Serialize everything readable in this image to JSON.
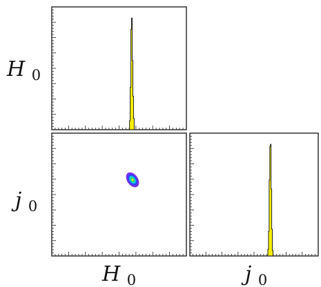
{
  "chart_data": [
    {
      "id": "h0-marginal",
      "type": "histogram",
      "xlabel": "",
      "ylabel": "H0",
      "fill_color": "#f7ef00",
      "bins": [
        {
          "x": 0.575,
          "h": 0.0
        },
        {
          "x": 0.58,
          "h": 0.08
        },
        {
          "x": 0.585,
          "h": 0.38
        },
        {
          "x": 0.59,
          "h": 0.9
        },
        {
          "x": 0.595,
          "h": 1.0
        },
        {
          "x": 0.6,
          "h": 0.62
        },
        {
          "x": 0.605,
          "h": 0.3
        },
        {
          "x": 0.61,
          "h": 0.1
        },
        {
          "x": 0.615,
          "h": 0.0
        }
      ],
      "xlim": [
        0,
        1
      ],
      "ylim": [
        0,
        1.1
      ]
    },
    {
      "id": "j0-marginal",
      "type": "histogram",
      "xlabel": "j0",
      "ylabel": "",
      "fill_color": "#f7ef00",
      "bins": [
        {
          "x": 0.605,
          "h": 0.0
        },
        {
          "x": 0.61,
          "h": 0.06
        },
        {
          "x": 0.615,
          "h": 0.22
        },
        {
          "x": 0.62,
          "h": 0.68
        },
        {
          "x": 0.625,
          "h": 0.98
        },
        {
          "x": 0.63,
          "h": 1.0
        },
        {
          "x": 0.635,
          "h": 0.6
        },
        {
          "x": 0.64,
          "h": 0.24
        },
        {
          "x": 0.645,
          "h": 0.05
        },
        {
          "x": 0.65,
          "h": 0.0
        }
      ],
      "xlim": [
        0,
        1
      ],
      "ylim": [
        0,
        1.1
      ]
    },
    {
      "id": "h0-j0-joint",
      "type": "heatmap",
      "xlabel": "H0",
      "ylabel": "j0",
      "center": [
        0.6,
        0.62
      ],
      "contours": [
        {
          "level": 0.1,
          "rx": 0.08,
          "ry": 0.135,
          "rotation_deg": -35,
          "color": "#7a2df0"
        },
        {
          "level": 0.3,
          "rx": 0.06,
          "ry": 0.1,
          "rotation_deg": -35,
          "color": "#2a49f5"
        },
        {
          "level": 0.5,
          "rx": 0.042,
          "ry": 0.07,
          "rotation_deg": -35,
          "color": "#19c8e8"
        },
        {
          "level": 0.7,
          "rx": 0.028,
          "ry": 0.045,
          "rotation_deg": -35,
          "color": "#23d96b"
        },
        {
          "level": 0.9,
          "rx": 0.014,
          "ry": 0.022,
          "rotation_deg": -35,
          "color": "#f0e020"
        }
      ],
      "xlim": [
        0,
        1
      ],
      "ylim": [
        0,
        1
      ]
    }
  ]
}
